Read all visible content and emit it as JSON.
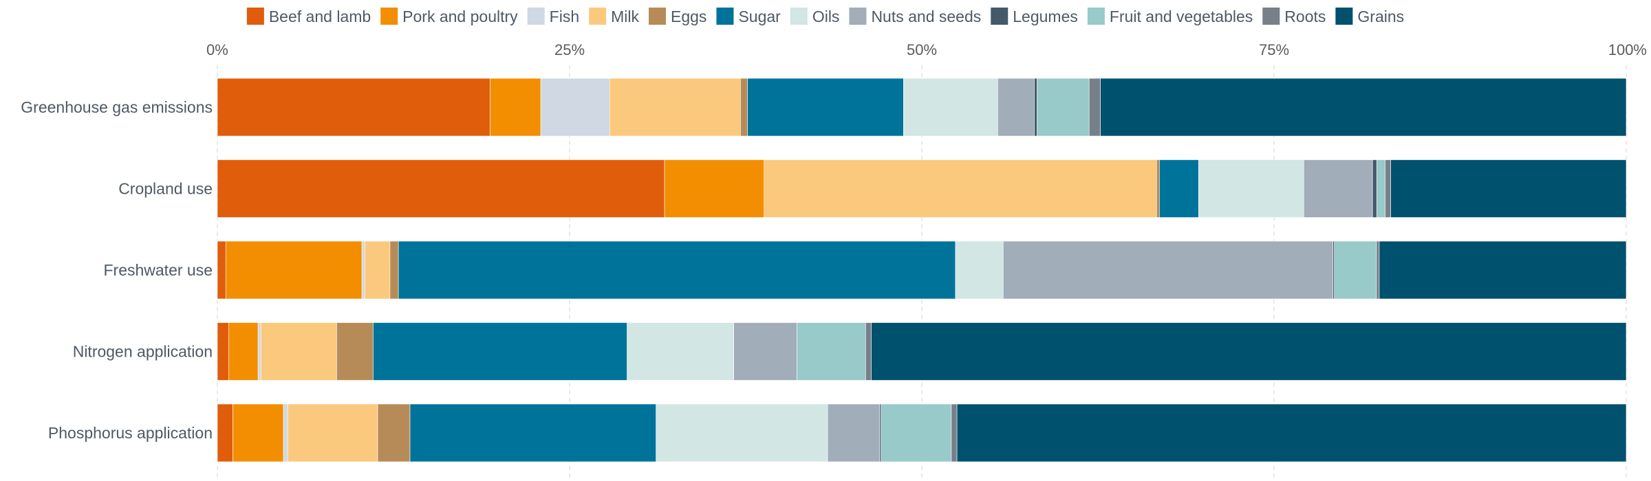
{
  "chart_data": {
    "type": "bar",
    "orientation": "horizontal",
    "stacked": true,
    "normalized": true,
    "categories": [
      "Greenhouse gas emissions",
      "Cropland use",
      "Freshwater use",
      "Nitrogen application",
      "Phosphorus application"
    ],
    "x_ticks": [
      "0%",
      "25%",
      "50%",
      "75%",
      "100%"
    ],
    "xlim": [
      0,
      100
    ],
    "grid": true,
    "legend_position": "top",
    "series": [
      {
        "name": "Beef and lamb",
        "color": "#e05d0b",
        "values": [
          19.4,
          31.9,
          0.6,
          0.8,
          1.1
        ]
      },
      {
        "name": "Pork and poultry",
        "color": "#f28e00",
        "values": [
          3.6,
          7.1,
          9.7,
          2.1,
          3.6
        ]
      },
      {
        "name": "Fish",
        "color": "#cfd8e3",
        "values": [
          4.9,
          0.0,
          0.2,
          0.2,
          0.3
        ]
      },
      {
        "name": "Milk",
        "color": "#fbc97d",
        "values": [
          9.3,
          28.0,
          1.8,
          5.4,
          6.4
        ]
      },
      {
        "name": "Eggs",
        "color": "#b78b57",
        "values": [
          0.5,
          0.2,
          0.6,
          2.6,
          2.3
        ]
      },
      {
        "name": "Sugar",
        "color": "#00739a",
        "values": [
          11.1,
          2.8,
          39.7,
          18.1,
          17.5
        ]
      },
      {
        "name": "Oils",
        "color": "#d2e6e4",
        "values": [
          6.7,
          7.5,
          3.4,
          7.6,
          12.2
        ]
      },
      {
        "name": "Nuts and seeds",
        "color": "#a1adb9",
        "values": [
          2.6,
          4.9,
          23.5,
          4.5,
          3.7
        ]
      },
      {
        "name": "Legumes",
        "color": "#45596b",
        "values": [
          0.2,
          0.3,
          0.1,
          0.0,
          0.1
        ]
      },
      {
        "name": "Fruit and vegetables",
        "color": "#97cac8",
        "values": [
          3.7,
          0.6,
          3.0,
          4.9,
          5.0
        ]
      },
      {
        "name": "Roots",
        "color": "#777f88",
        "values": [
          0.8,
          0.4,
          0.2,
          0.4,
          0.4
        ]
      },
      {
        "name": "Grains",
        "color": "#00516d",
        "values": [
          37.4,
          16.8,
          17.6,
          53.8,
          47.6
        ]
      }
    ]
  }
}
